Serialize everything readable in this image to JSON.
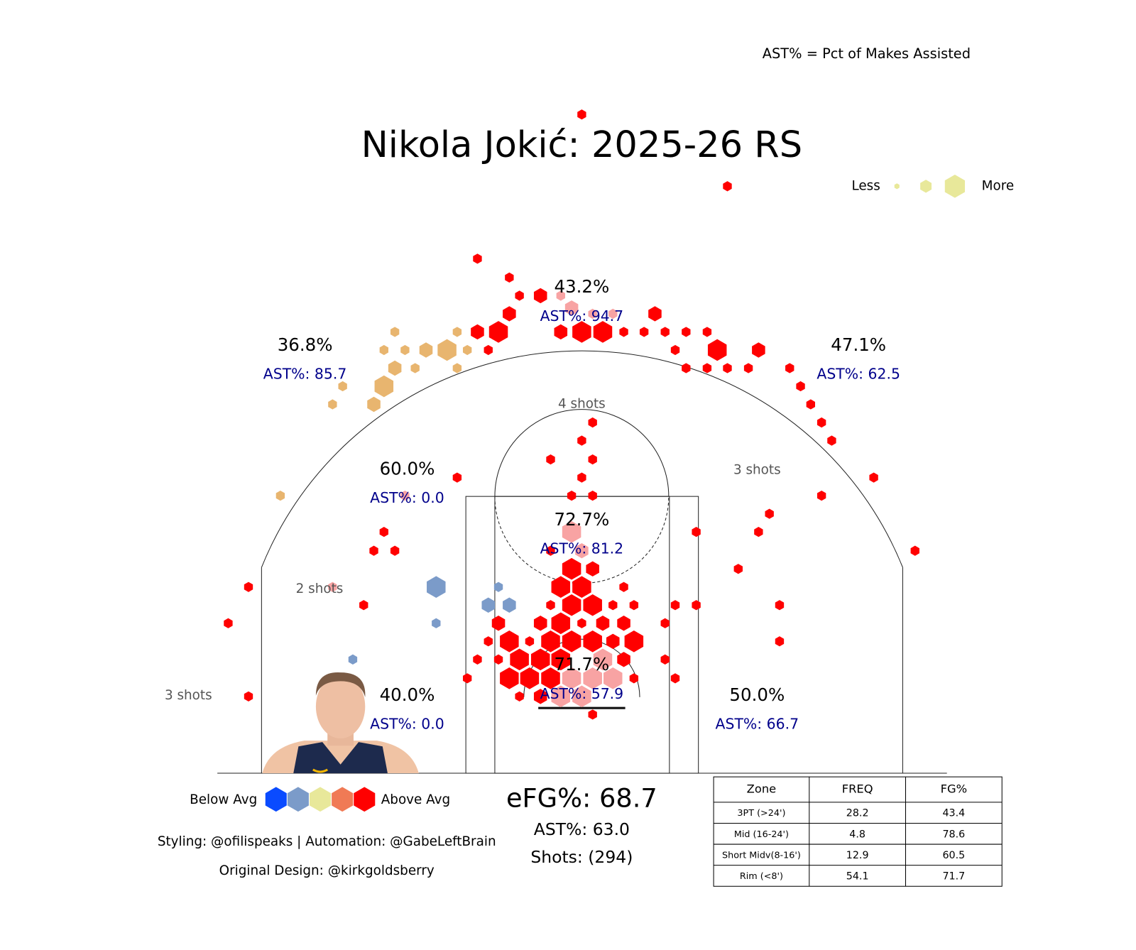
{
  "chart_data": {
    "type": "hexbin",
    "title": "Nikola Jokić: 2025-26 RS",
    "note": "AST% = Pct of Makes Assisted",
    "xlim": [
      -25,
      25
    ],
    "ylim": [
      -5.25,
      42
    ],
    "groups": [
      {
        "color": "#ff0000",
        "x": [
          0,
          10.05,
          -7.2,
          -5,
          -4.3,
          -2.85,
          -5,
          5.05,
          -5.75,
          -7.2,
          -1.45,
          0,
          1.45,
          2.9,
          4.3,
          5.75,
          7.2,
          8.65,
          -6.45,
          6.45,
          9.35,
          12.2,
          7.2,
          8.65,
          10.05,
          11.5,
          14.35,
          15.1,
          15.8,
          16.55,
          17.25,
          20.15,
          16.55,
          12.95,
          12.2,
          23,
          10.8,
          13.65,
          13.65,
          7.9,
          7.9,
          6.45,
          5.75,
          5.75,
          6.45,
          -8.6,
          -13.65,
          -14.35,
          -12.9,
          -23,
          -15.05,
          -24.4,
          -23,
          -7.2,
          -7.9,
          0.75,
          0,
          -2.15,
          0.75,
          0,
          -0.7,
          0.75,
          -2.15,
          -0.7,
          0.75,
          -1.45,
          0,
          2.9,
          -2.15,
          -0.7,
          0.75,
          2.15,
          3.6,
          -5.75,
          -2.85,
          -1.45,
          0,
          1.45,
          2.9,
          -6.45,
          -5,
          -3.6,
          -2.15,
          -0.7,
          0.75,
          2.15,
          3.6,
          -5.75,
          -4.3,
          -2.85,
          -1.45,
          2.9,
          -5,
          -3.6,
          -2.15,
          3.6,
          -4.3,
          -2.85,
          0.75
        ],
        "y": [
          40.2,
          35.25,
          30.25,
          28.95,
          27.7,
          27.7,
          26.45,
          26.45,
          25.2,
          25.2,
          25.2,
          25.2,
          25.2,
          25.2,
          25.2,
          25.2,
          25.2,
          25.2,
          23.95,
          23.95,
          23.95,
          23.95,
          22.7,
          22.7,
          22.7,
          22.7,
          22.7,
          21.45,
          20.2,
          18.95,
          17.7,
          15.15,
          13.9,
          12.65,
          11.4,
          10.1,
          8.85,
          6.35,
          3.85,
          11.4,
          6.35,
          6.35,
          5.1,
          2.6,
          1.3,
          15.15,
          11.4,
          10.1,
          10.1,
          7.6,
          6.35,
          5.1,
          0.05,
          2.6,
          1.3,
          18.95,
          17.7,
          16.4,
          16.4,
          15.15,
          13.9,
          13.9,
          10.1,
          8.85,
          8.85,
          7.6,
          7.6,
          7.6,
          6.35,
          6.35,
          6.35,
          6.35,
          6.35,
          5.1,
          5.1,
          5.1,
          5.1,
          5.1,
          5.1,
          3.85,
          3.85,
          3.85,
          3.85,
          3.85,
          3.85,
          3.85,
          3.85,
          2.6,
          2.6,
          2.6,
          2.6,
          2.6,
          1.3,
          1.3,
          1.3,
          1.3,
          0.05,
          0.05,
          -1.2
        ],
        "size": [
          1,
          1,
          1,
          1,
          1,
          2,
          2,
          2,
          3,
          2,
          2,
          3,
          3,
          1,
          1,
          1,
          1,
          1,
          1,
          1,
          3,
          2,
          1,
          1,
          1,
          1,
          1,
          1,
          1,
          1,
          1,
          1,
          1,
          1,
          1,
          1,
          1,
          1,
          1,
          1,
          1,
          1,
          1,
          1,
          1,
          1,
          1,
          1,
          1,
          1,
          1,
          1,
          1,
          1,
          1,
          1,
          1,
          1,
          1,
          1,
          1,
          1,
          1,
          3,
          2,
          3,
          3,
          1,
          1,
          3,
          3,
          1,
          1,
          2,
          2,
          3,
          1,
          2,
          2,
          1,
          3,
          1,
          3,
          3,
          3,
          2,
          3,
          1,
          3,
          3,
          3,
          2,
          3,
          3,
          3,
          1,
          1,
          2,
          1
        ]
      },
      {
        "color": "#f8a3a3",
        "x": [
          -1.45,
          -0.7,
          0.75,
          2.15,
          -12.2,
          -17.2,
          -0.7,
          0,
          1.45,
          -0.7,
          0.75,
          2.15,
          -1.45,
          0
        ],
        "y": [
          27.7,
          26.85,
          26.45,
          26.45,
          13.9,
          7.6,
          11.4,
          10.1,
          2.6,
          1.3,
          1.3,
          1.3,
          0.05,
          0.05
        ],
        "size": [
          1,
          2,
          1,
          1,
          1,
          1,
          3,
          2,
          3,
          3,
          3,
          3,
          3,
          3
        ]
      },
      {
        "color": "#e8b56f",
        "x": [
          -12.9,
          -8.6,
          -13.65,
          -12.2,
          -10.75,
          -9.3,
          -7.9,
          -12.9,
          -11.5,
          -8.6,
          -16.5,
          -13.65,
          -17.2,
          -14.35,
          -20.8
        ],
        "y": [
          25.2,
          25.2,
          23.95,
          23.95,
          23.95,
          23.95,
          23.95,
          22.7,
          22.7,
          22.7,
          21.45,
          21.45,
          20.2,
          20.2,
          13.9
        ],
        "size": [
          1,
          1,
          1,
          1,
          2,
          3,
          1,
          2,
          1,
          1,
          1,
          3,
          1,
          2,
          1
        ]
      },
      {
        "color": "#7b9bc9",
        "x": [
          -10.05,
          -5.75,
          -6.45,
          -5,
          -10.05,
          -15.8
        ],
        "y": [
          7.6,
          7.6,
          6.35,
          6.35,
          5.1,
          2.6
        ],
        "size": [
          3,
          1,
          2,
          2,
          1,
          1
        ]
      }
    ],
    "zones": [
      {
        "fg": "43.2%",
        "ast": "AST%: 94.7"
      },
      {
        "fg": "36.8%",
        "ast": "AST%: 85.7"
      },
      {
        "fg": "47.1%",
        "ast": "AST%: 62.5"
      },
      {
        "fg": "60.0%",
        "ast": "AST%: 0.0"
      },
      {
        "fg": "72.7%",
        "ast": "AST%: 81.2"
      },
      {
        "fg": "71.7%",
        "ast": "AST%: 57.9"
      },
      {
        "fg": "40.0%",
        "ast": "AST%: 0.0"
      },
      {
        "fg": "50.0%",
        "ast": "AST%: 66.7"
      }
    ],
    "shot_notes": [
      "4 shots",
      "3 shots",
      "2 shots",
      "3 shots"
    ],
    "size_legend": {
      "low": "Less",
      "high": "More",
      "color": "#e8e89a"
    },
    "color_legend": {
      "low": "Below Avg",
      "high": "Above Avg",
      "colors": [
        "#0a4bff",
        "#7b9bc9",
        "#e8e89a",
        "#f07a55",
        "#ff0000"
      ]
    },
    "summary": {
      "efg": "eFG%: 68.7",
      "ast": "AST%: 63.0",
      "shots": "Shots: (294)"
    },
    "credits": [
      "Styling: @ofilispeaks | Automation: @GabeLeftBrain",
      "Original Design: @kirkgoldsberry"
    ]
  },
  "table": {
    "header": [
      "Zone",
      "FREQ",
      "FG%"
    ],
    "rows": [
      [
        "3PT (>24')",
        28.2,
        43.4
      ],
      [
        "Mid (16-24')",
        4.8,
        78.6
      ],
      [
        "Short Midv(8-16')",
        12.9,
        60.5
      ],
      [
        "Rim (<8')",
        54.1,
        71.7
      ]
    ]
  }
}
